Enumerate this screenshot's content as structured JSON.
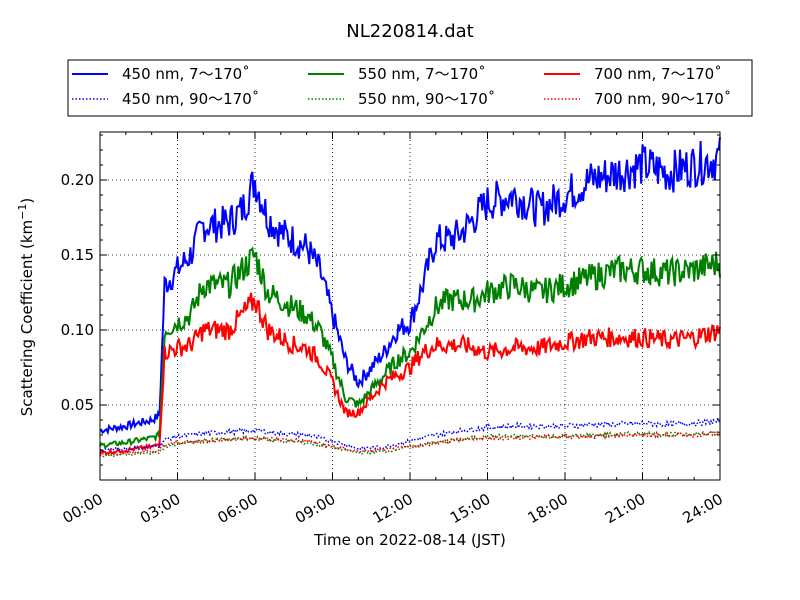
{
  "chart_data": {
    "type": "line",
    "title": "NL220814.dat",
    "xlabel": "Time on 2022-08-14 (JST)",
    "ylabel_main": "Scattering Coefficient (km",
    "ylabel_sup": "−1",
    "ylabel_close": ")",
    "xlim": [
      0,
      24
    ],
    "ylim": [
      0.0,
      0.232
    ],
    "x_ticks": [
      0,
      3,
      6,
      9,
      12,
      15,
      18,
      21,
      24
    ],
    "x_tick_labels": [
      "00:00",
      "03:00",
      "06:00",
      "09:00",
      "12:00",
      "15:00",
      "18:00",
      "21:00",
      "24:00"
    ],
    "y_ticks": [
      0.05,
      0.1,
      0.15,
      0.2
    ],
    "y_tick_labels": [
      "0.05",
      "0.10",
      "0.15",
      "0.20"
    ],
    "grid": true,
    "legend_position": "top, above plot area",
    "legend_columns": 3,
    "series": [
      {
        "name": "450 nm, 7～170˚",
        "color": "#0000ff",
        "style": "solid",
        "x": [
          0,
          1,
          2,
          2.3,
          2.5,
          3,
          3.5,
          4,
          4.5,
          5,
          5.5,
          6,
          6.5,
          7,
          7.5,
          8,
          8.5,
          9,
          9.5,
          10,
          10.5,
          11,
          11.5,
          12,
          12.5,
          13,
          13.5,
          14,
          14.5,
          15,
          16,
          17,
          18,
          19,
          20,
          21,
          22,
          23,
          24
        ],
        "values": [
          0.033,
          0.036,
          0.04,
          0.043,
          0.13,
          0.14,
          0.15,
          0.17,
          0.17,
          0.172,
          0.18,
          0.2,
          0.175,
          0.165,
          0.16,
          0.155,
          0.14,
          0.11,
          0.08,
          0.065,
          0.075,
          0.085,
          0.1,
          0.105,
          0.13,
          0.16,
          0.16,
          0.165,
          0.175,
          0.185,
          0.19,
          0.18,
          0.19,
          0.2,
          0.205,
          0.21,
          0.205,
          0.21,
          0.215
        ]
      },
      {
        "name": "550 nm, 7～170˚",
        "color": "#008000",
        "style": "solid",
        "x": [
          0,
          1,
          2,
          2.3,
          2.5,
          3,
          3.5,
          4,
          4.5,
          5,
          5.5,
          6,
          6.5,
          7,
          7.5,
          8,
          8.5,
          9,
          9.5,
          10,
          10.5,
          11,
          11.5,
          12,
          12.5,
          13,
          13.5,
          14,
          14.5,
          15,
          16,
          17,
          18,
          19,
          20,
          21,
          22,
          23,
          24
        ],
        "values": [
          0.023,
          0.025,
          0.028,
          0.03,
          0.1,
          0.105,
          0.11,
          0.13,
          0.13,
          0.13,
          0.14,
          0.15,
          0.125,
          0.12,
          0.115,
          0.11,
          0.1,
          0.08,
          0.055,
          0.05,
          0.06,
          0.07,
          0.08,
          0.085,
          0.1,
          0.115,
          0.12,
          0.12,
          0.12,
          0.125,
          0.13,
          0.125,
          0.13,
          0.135,
          0.14,
          0.14,
          0.138,
          0.14,
          0.145
        ]
      },
      {
        "name": "700 nm, 7～170˚",
        "color": "#ff0000",
        "style": "solid",
        "x": [
          0,
          1,
          2,
          2.3,
          2.5,
          3,
          3.5,
          4,
          4.5,
          5,
          5.5,
          6,
          6.5,
          7,
          7.5,
          8,
          8.5,
          9,
          9.5,
          10,
          10.5,
          11,
          11.5,
          12,
          12.5,
          13,
          13.5,
          14,
          14.5,
          15,
          16,
          17,
          18,
          19,
          20,
          21,
          22,
          23,
          24
        ],
        "values": [
          0.018,
          0.02,
          0.022,
          0.024,
          0.085,
          0.088,
          0.09,
          0.1,
          0.1,
          0.1,
          0.11,
          0.12,
          0.1,
          0.095,
          0.09,
          0.088,
          0.08,
          0.065,
          0.045,
          0.045,
          0.055,
          0.065,
          0.07,
          0.075,
          0.085,
          0.09,
          0.09,
          0.09,
          0.088,
          0.085,
          0.088,
          0.088,
          0.092,
          0.095,
          0.095,
          0.095,
          0.093,
          0.095,
          0.1
        ]
      },
      {
        "name": "450 nm, 90～170˚",
        "color": "#0000ff",
        "style": "dotted",
        "x": [
          0,
          1,
          2,
          2.3,
          2.5,
          3,
          4,
          5,
          6,
          7,
          8,
          9,
          10,
          11,
          12,
          13,
          14,
          15,
          16,
          17,
          18,
          19,
          20,
          21,
          22,
          23,
          24
        ],
        "values": [
          0.02,
          0.021,
          0.022,
          0.023,
          0.027,
          0.029,
          0.031,
          0.032,
          0.033,
          0.031,
          0.03,
          0.026,
          0.021,
          0.022,
          0.026,
          0.03,
          0.033,
          0.035,
          0.036,
          0.036,
          0.036,
          0.037,
          0.037,
          0.038,
          0.037,
          0.038,
          0.039
        ]
      },
      {
        "name": "550 nm, 90～170˚",
        "color": "#008000",
        "style": "dotted",
        "x": [
          0,
          1,
          2,
          2.3,
          2.5,
          3,
          4,
          5,
          6,
          7,
          8,
          9,
          10,
          11,
          12,
          13,
          14,
          15,
          16,
          17,
          18,
          19,
          20,
          21,
          22,
          23,
          24
        ],
        "values": [
          0.016,
          0.017,
          0.018,
          0.019,
          0.022,
          0.024,
          0.026,
          0.027,
          0.028,
          0.026,
          0.025,
          0.022,
          0.018,
          0.019,
          0.022,
          0.025,
          0.027,
          0.029,
          0.029,
          0.029,
          0.029,
          0.03,
          0.03,
          0.031,
          0.03,
          0.031,
          0.031
        ]
      },
      {
        "name": "700 nm, 90～170˚",
        "color": "#ff0000",
        "style": "dotted",
        "x": [
          0,
          1,
          2,
          2.3,
          2.5,
          3,
          4,
          5,
          6,
          7,
          8,
          9,
          10,
          11,
          12,
          13,
          14,
          15,
          16,
          17,
          18,
          19,
          20,
          21,
          22,
          23,
          24
        ],
        "values": [
          0.017,
          0.018,
          0.019,
          0.02,
          0.023,
          0.025,
          0.026,
          0.027,
          0.028,
          0.027,
          0.026,
          0.022,
          0.019,
          0.02,
          0.022,
          0.025,
          0.027,
          0.028,
          0.028,
          0.029,
          0.029,
          0.029,
          0.03,
          0.03,
          0.03,
          0.03,
          0.031
        ]
      }
    ]
  }
}
